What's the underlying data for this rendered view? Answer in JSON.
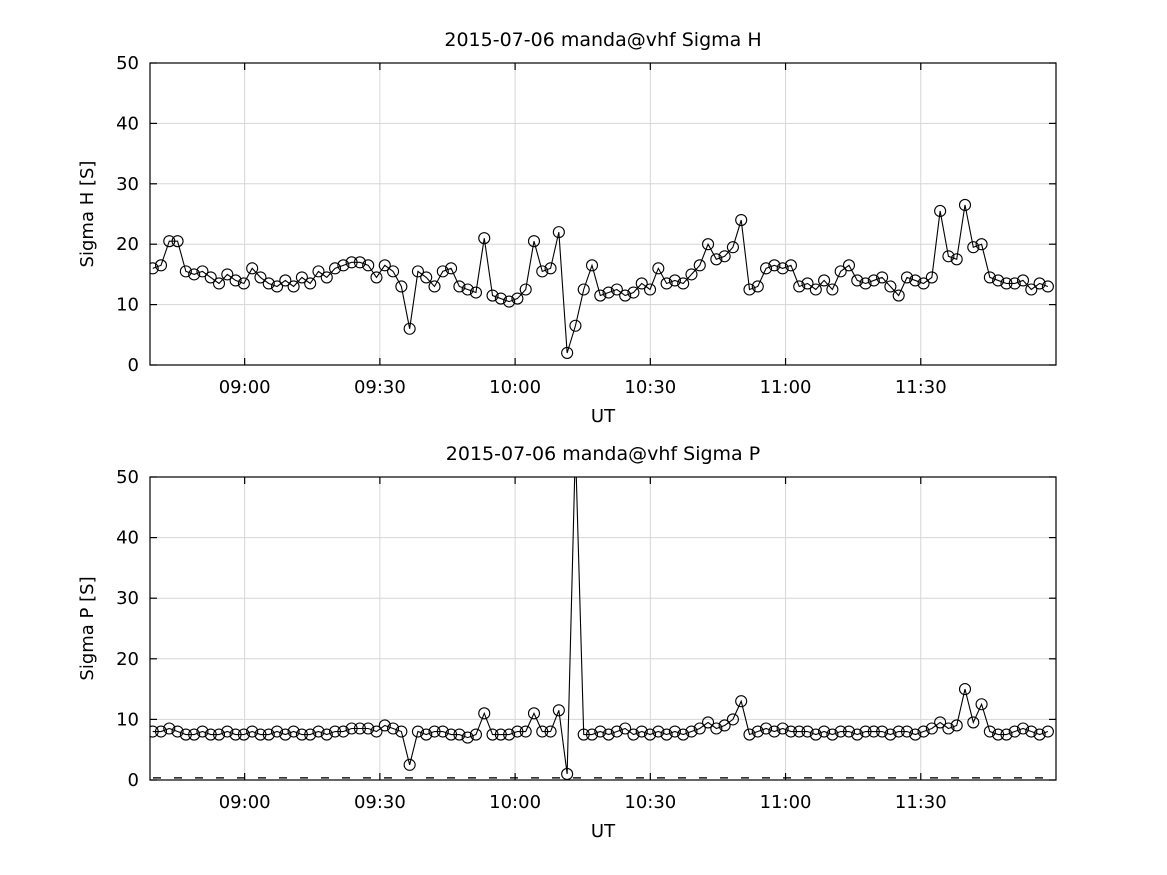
{
  "figure": {
    "background": "#ffffff",
    "axis_color": "#000000",
    "grid_color": "#d6d6d6",
    "line_color": "#000000",
    "marker": "open-circle"
  },
  "chart_data": [
    {
      "id": "sigma-h",
      "type": "line",
      "title": "2015-07-06  manda@vhf Sigma H",
      "xlabel": "UT",
      "ylabel": "Sigma H [S]",
      "ylim": [
        0,
        50
      ],
      "yticks": [
        0,
        10,
        20,
        30,
        40,
        50
      ],
      "xlim_hours": [
        8.65,
        12.0
      ],
      "xticks": [
        {
          "hour": 9.0,
          "label": "09:00"
        },
        {
          "hour": 9.5,
          "label": "09:30"
        },
        {
          "hour": 10.0,
          "label": "10:00"
        },
        {
          "hour": 10.5,
          "label": "10:30"
        },
        {
          "hour": 11.0,
          "label": "11:00"
        },
        {
          "hour": 11.5,
          "label": "11:30"
        }
      ],
      "grid": true,
      "zero_dashed_line": false,
      "series_x_start_hour": 8.66,
      "series_x_end_hour": 11.97,
      "values": [
        16,
        16.5,
        20.5,
        20.5,
        15.5,
        15,
        15.5,
        14.5,
        13.5,
        15,
        14,
        13.5,
        16,
        14.5,
        13.5,
        13,
        14,
        13,
        14.5,
        13.5,
        15.5,
        14.5,
        16,
        16.5,
        17,
        17,
        16.5,
        14.5,
        16.5,
        15.5,
        13,
        6,
        15.5,
        14.5,
        13,
        15.5,
        16,
        13,
        12.5,
        12,
        21,
        11.5,
        11,
        10.5,
        11,
        12.5,
        20.5,
        15.5,
        16,
        22,
        2,
        6.5,
        12.5,
        16.5,
        11.5,
        12,
        12.5,
        11.5,
        12,
        13.5,
        12.5,
        16,
        13.5,
        14,
        13.5,
        15,
        16.5,
        20,
        17.5,
        18,
        19.5,
        24,
        12.5,
        13,
        16,
        16.5,
        16,
        16.5,
        13,
        13.5,
        12.5,
        14,
        12.5,
        15.5,
        16.5,
        14,
        13.5,
        14,
        14.5,
        13,
        11.5,
        14.5,
        14,
        13.5,
        14.5,
        25.5,
        18,
        17.5,
        26.5,
        19.5,
        20,
        14.5,
        14,
        13.5,
        13.5,
        14,
        12.5,
        13.5,
        13
      ]
    },
    {
      "id": "sigma-p",
      "type": "line",
      "title": "2015-07-06  manda@vhf Sigma P",
      "xlabel": "UT",
      "ylabel": "Sigma P [S]",
      "ylim": [
        0,
        50
      ],
      "yticks": [
        0,
        10,
        20,
        30,
        40,
        50
      ],
      "xlim_hours": [
        8.65,
        12.0
      ],
      "xticks": [
        {
          "hour": 9.0,
          "label": "09:00"
        },
        {
          "hour": 9.5,
          "label": "09:30"
        },
        {
          "hour": 10.0,
          "label": "10:00"
        },
        {
          "hour": 10.5,
          "label": "10:30"
        },
        {
          "hour": 11.0,
          "label": "11:00"
        },
        {
          "hour": 11.5,
          "label": "11:30"
        }
      ],
      "grid": true,
      "zero_dashed_line": true,
      "series_x_start_hour": 8.66,
      "series_x_end_hour": 11.97,
      "values": [
        8,
        8,
        8.5,
        8,
        7.5,
        7.5,
        8,
        7.5,
        7.5,
        8,
        7.5,
        7.5,
        8,
        7.5,
        7.5,
        8,
        7.5,
        8,
        7.5,
        7.5,
        8,
        7.5,
        8,
        8,
        8.5,
        8.5,
        8.5,
        8,
        9,
        8.5,
        8,
        2.5,
        8,
        7.5,
        8,
        8,
        7.5,
        7.5,
        7,
        7.5,
        11,
        7.5,
        7.5,
        7.5,
        8,
        8,
        11,
        8,
        8,
        11.5,
        1,
        55,
        7.5,
        7.5,
        8,
        7.5,
        8,
        8.5,
        7.5,
        8,
        7.5,
        8,
        7.5,
        8,
        7.5,
        8,
        8.5,
        9.5,
        8.5,
        9,
        10,
        13,
        7.5,
        8,
        8.5,
        8,
        8.5,
        8,
        8,
        8,
        7.5,
        8,
        7.5,
        8,
        8,
        7.5,
        8,
        8,
        8,
        7.5,
        8,
        8,
        7.5,
        8,
        8.5,
        9.5,
        8.5,
        9,
        15,
        9.5,
        12.5,
        8,
        7.5,
        7.5,
        8,
        8.5,
        8,
        7.5,
        8
      ]
    }
  ]
}
